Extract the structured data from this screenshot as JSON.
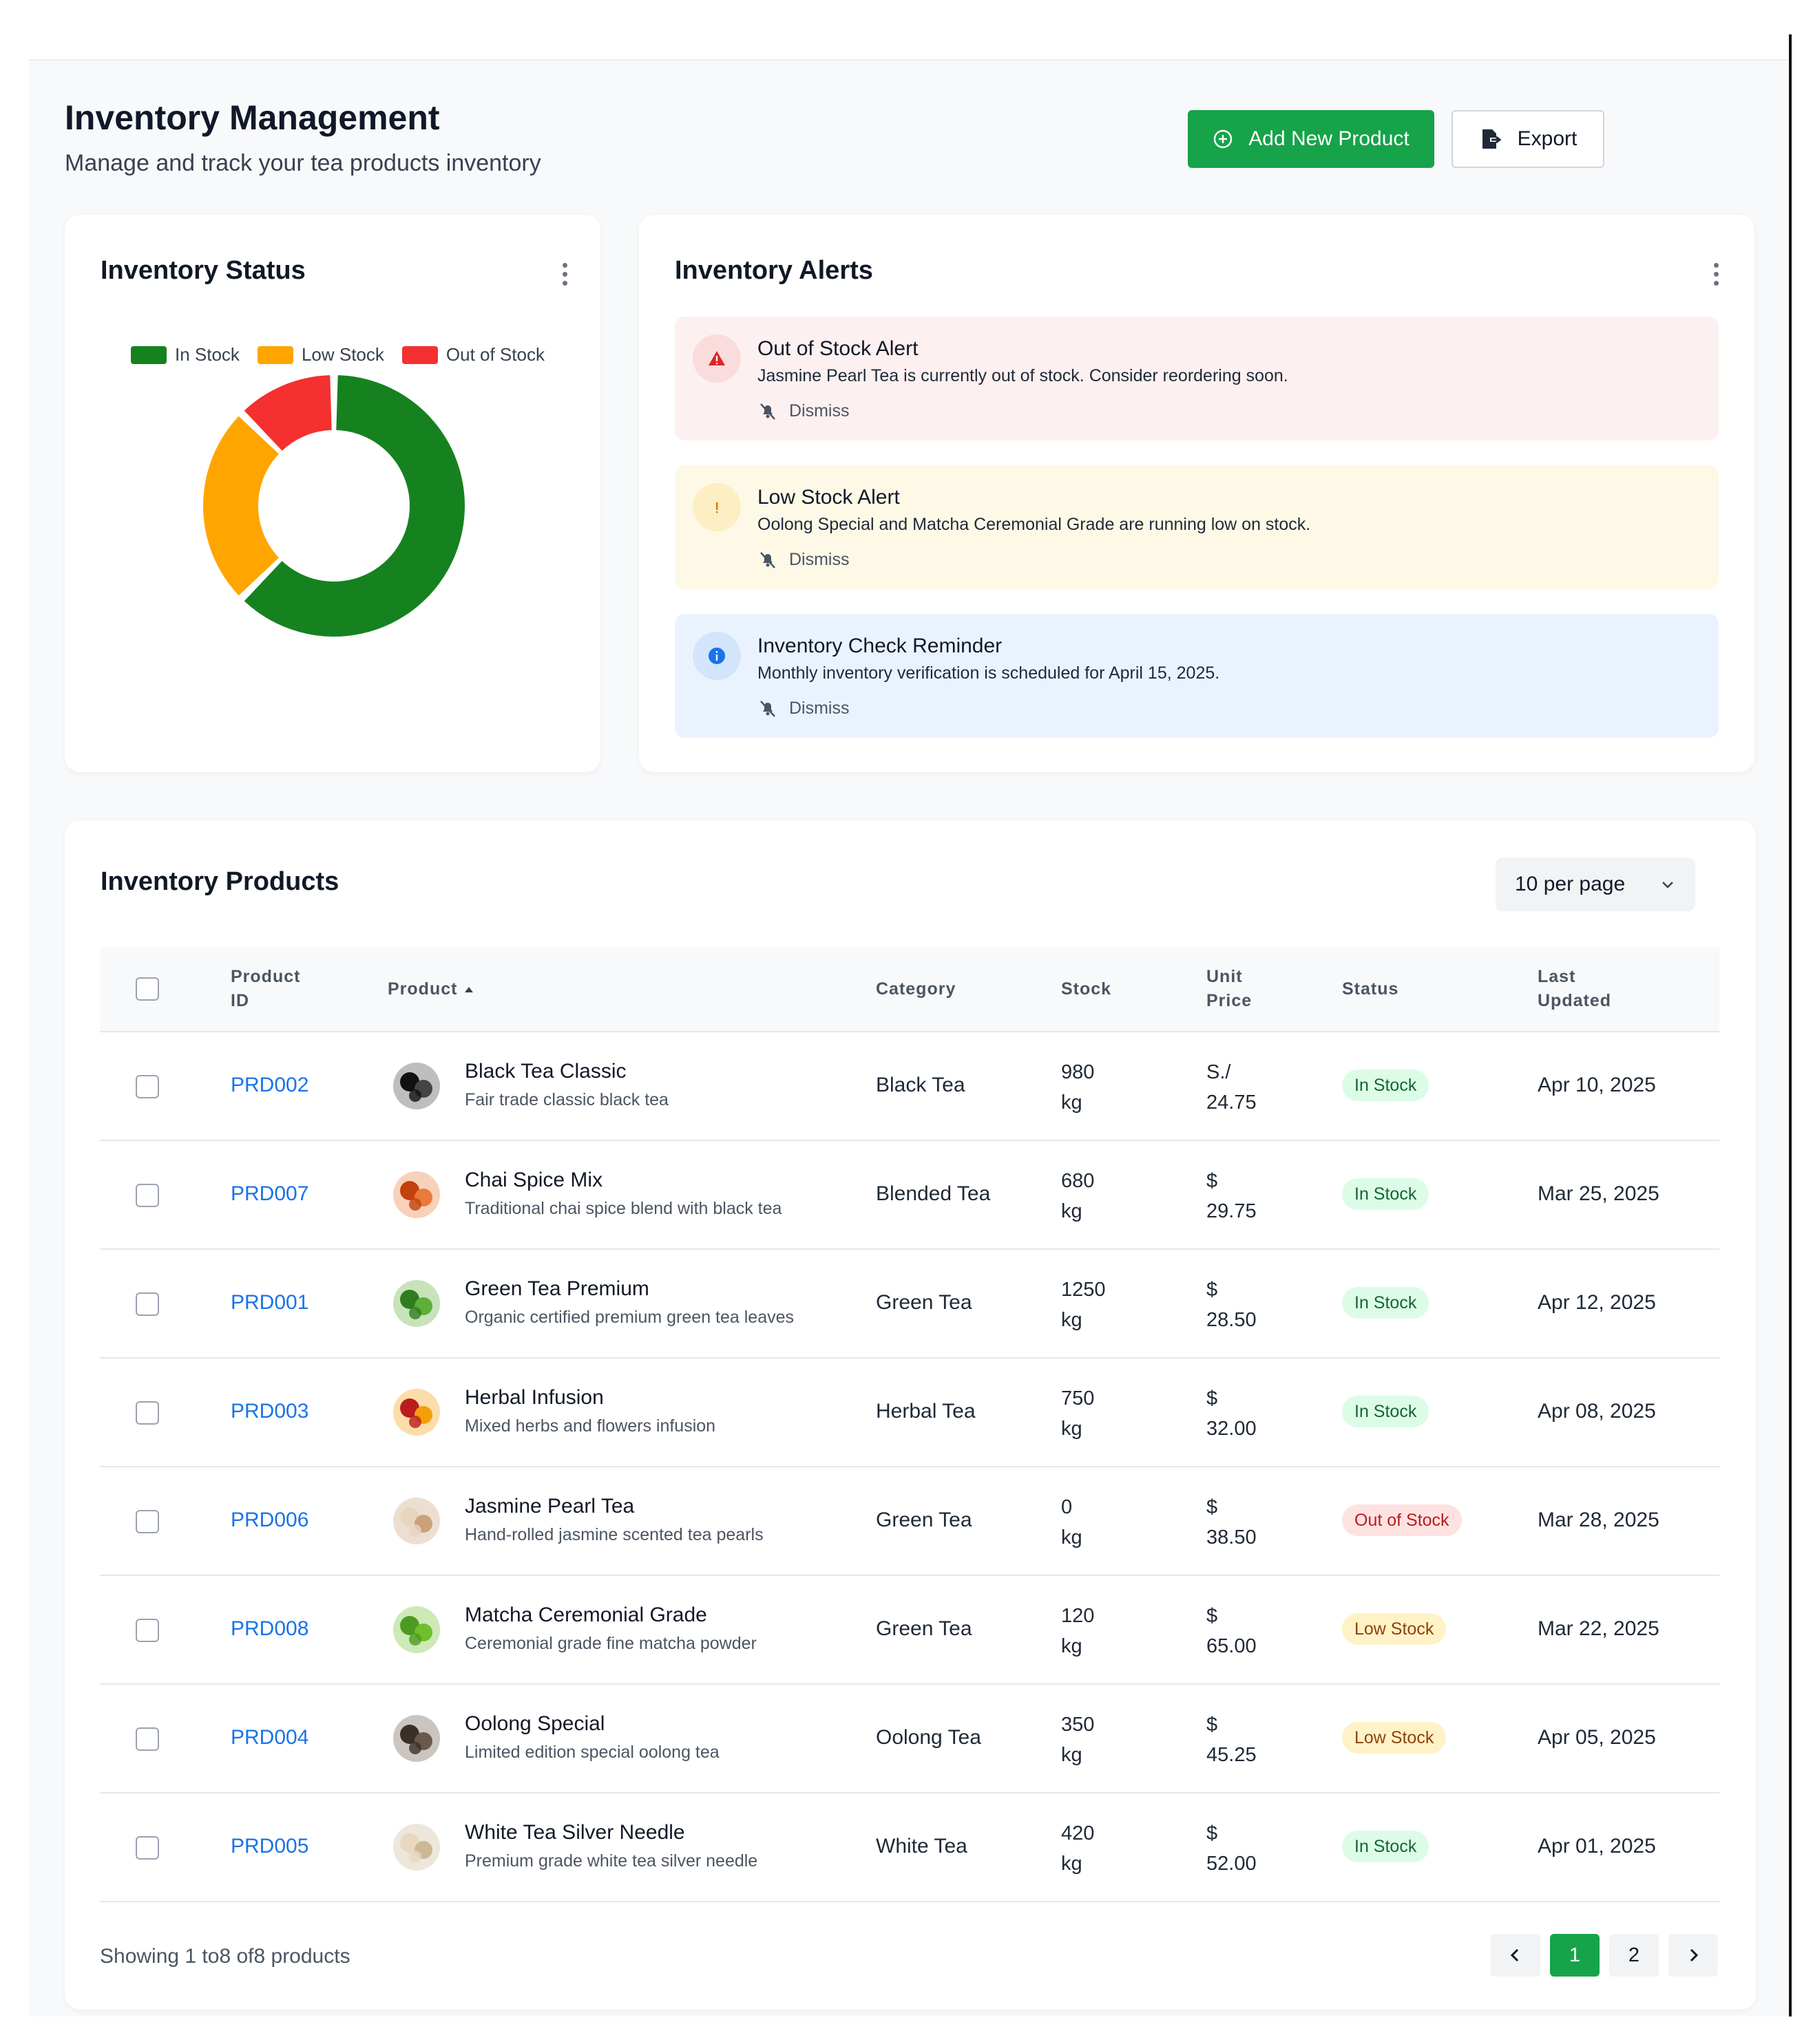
{
  "header": {
    "title": "Inventory Management",
    "subtitle": "Manage and track your tea products inventory",
    "add_button": "Add New Product",
    "export_button": "Export"
  },
  "status_card": {
    "title": "Inventory Status",
    "legend": [
      "In Stock",
      "Low Stock",
      "Out of Stock"
    ]
  },
  "chart_data": {
    "type": "pie",
    "title": "",
    "categories": [
      "In Stock",
      "Low Stock",
      "Out of Stock"
    ],
    "values": [
      5,
      2,
      1
    ],
    "colors": [
      "#15821f",
      "#ffa500",
      "#f43030"
    ],
    "legend": "top"
  },
  "alerts_card": {
    "title": "Inventory Alerts",
    "alerts": [
      {
        "type": "error",
        "icon": "warning-icon",
        "title": "Out of Stock Alert",
        "message": "Jasmine Pearl Tea is currently out of stock. Consider reordering soon.",
        "dismiss": "Dismiss"
      },
      {
        "type": "warning",
        "icon": "exclamation-icon",
        "title": "Low Stock Alert",
        "message": "Oolong Special and Matcha Ceremonial Grade are running low on stock.",
        "dismiss": "Dismiss"
      },
      {
        "type": "info",
        "icon": "info-icon",
        "title": "Inventory Check Reminder",
        "message": "Monthly inventory verification is scheduled for April 15, 2025.",
        "dismiss": "Dismiss"
      }
    ]
  },
  "products": {
    "title": "Inventory Products",
    "per_page": "10 per page",
    "columns": {
      "id1": "Product",
      "id2": "ID",
      "product": "Product",
      "category": "Category",
      "stock": "Stock",
      "price1": "Unit",
      "price2": "Price",
      "status": "Status",
      "updated1": "Last",
      "updated2": "Updated"
    },
    "rows": [
      {
        "id": "PRD002",
        "name": "Black Tea Classic",
        "desc": "Fair trade classic black tea",
        "category": "Black Tea",
        "stock": "980",
        "unit": "kg",
        "currency": "S./",
        "price": "24.75",
        "status": "In Stock",
        "updated": "Apr 10, 2025"
      },
      {
        "id": "PRD007",
        "name": "Chai Spice Mix",
        "desc": "Traditional chai spice blend with black tea",
        "category": "Blended Tea",
        "stock": "680",
        "unit": "kg",
        "currency": "$",
        "price": "29.75",
        "status": "In Stock",
        "updated": "Mar 25, 2025"
      },
      {
        "id": "PRD001",
        "name": "Green Tea Premium",
        "desc": "Organic certified premium green tea leaves",
        "category": "Green Tea",
        "stock": "1250",
        "unit": "kg",
        "currency": "$",
        "price": "28.50",
        "status": "In Stock",
        "updated": "Apr 12, 2025"
      },
      {
        "id": "PRD003",
        "name": "Herbal Infusion",
        "desc": "Mixed herbs and flowers infusion",
        "category": "Herbal Tea",
        "stock": "750",
        "unit": "kg",
        "currency": "$",
        "price": "32.00",
        "status": "In Stock",
        "updated": "Apr 08, 2025"
      },
      {
        "id": "PRD006",
        "name": "Jasmine Pearl Tea",
        "desc": "Hand-rolled jasmine scented tea pearls",
        "category": "Green Tea",
        "stock": "0",
        "unit": "kg",
        "currency": "$",
        "price": "38.50",
        "status": "Out of Stock",
        "updated": "Mar 28, 2025"
      },
      {
        "id": "PRD008",
        "name": "Matcha Ceremonial Grade",
        "desc": "Ceremonial grade fine matcha powder",
        "category": "Green Tea",
        "stock": "120",
        "unit": "kg",
        "currency": "$",
        "price": "65.00",
        "status": "Low Stock",
        "updated": "Mar 22, 2025"
      },
      {
        "id": "PRD004",
        "name": "Oolong Special",
        "desc": "Limited edition special oolong tea",
        "category": "Oolong Tea",
        "stock": "350",
        "unit": "kg",
        "currency": "$",
        "price": "45.25",
        "status": "Low Stock",
        "updated": "Apr 05, 2025"
      },
      {
        "id": "PRD005",
        "name": "White Tea Silver Needle",
        "desc": "Premium grade white tea silver needle",
        "category": "White Tea",
        "stock": "420",
        "unit": "kg",
        "currency": "$",
        "price": "52.00",
        "status": "In Stock",
        "updated": "Apr 01, 2025"
      }
    ],
    "showing": "Showing 1 to8 of8 products",
    "pages": [
      "1",
      "2"
    ]
  }
}
